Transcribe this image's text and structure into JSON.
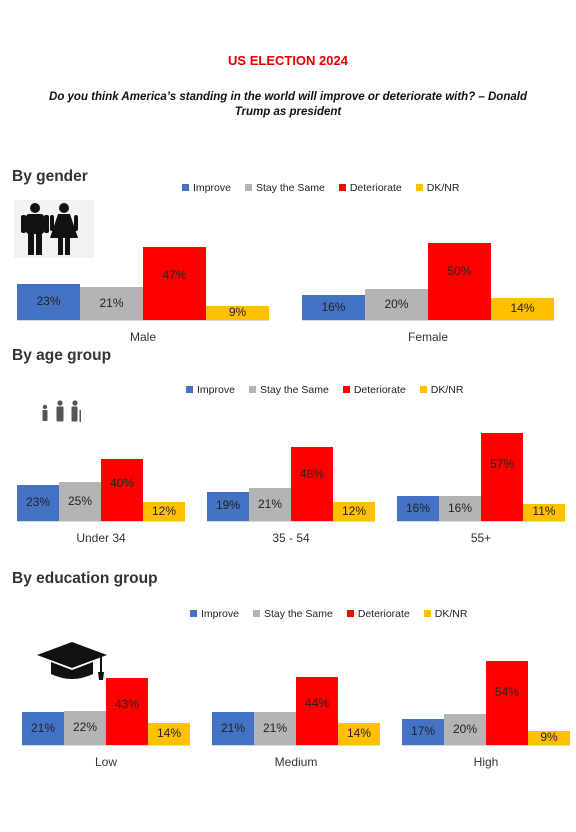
{
  "title": "US ELECTION 2024",
  "question": "Do you think America’s standing in the world will improve or deteriorate with? – Donald Trump as president",
  "colors": {
    "improve": "#4472c4",
    "same": "#b4b4b4",
    "deteriorate": "#ff0000",
    "dknr": "#ffc000"
  },
  "legend": [
    "Improve",
    "Stay the Same",
    "Deteriorate",
    "DK/NR"
  ],
  "sections": {
    "gender": {
      "title": "By gender",
      "icon": "man-woman-icon"
    },
    "age": {
      "title": "By age group",
      "icon": "family-age-icon"
    },
    "education": {
      "title": "By education group",
      "icon": "graduation-cap-icon"
    }
  },
  "chart_data": [
    {
      "type": "bar",
      "title": "By gender",
      "categories": [
        "Male",
        "Female"
      ],
      "series": [
        {
          "name": "Improve",
          "values": [
            23,
            16
          ]
        },
        {
          "name": "Stay the Same",
          "values": [
            21,
            20
          ]
        },
        {
          "name": "Deteriorate",
          "values": [
            47,
            50
          ]
        },
        {
          "name": "DK/NR",
          "values": [
            9,
            14
          ]
        }
      ],
      "value_labels": [
        [
          "23%",
          "21%",
          "47%",
          "9%"
        ],
        [
          "16%",
          "20%",
          "50%",
          "14%"
        ]
      ],
      "legend_position": "top"
    },
    {
      "type": "bar",
      "title": "By age group",
      "categories": [
        "Under 34",
        "35 - 54",
        "55+"
      ],
      "series": [
        {
          "name": "Improve",
          "values": [
            23,
            19,
            16
          ]
        },
        {
          "name": "Stay the Same",
          "values": [
            25,
            21,
            16
          ]
        },
        {
          "name": "Deteriorate",
          "values": [
            40,
            48,
            57
          ]
        },
        {
          "name": "DK/NR",
          "values": [
            12,
            12,
            11
          ]
        }
      ],
      "value_labels": [
        [
          "23%",
          "25%",
          "40%",
          "12%"
        ],
        [
          "19%",
          "21%",
          "48%",
          "12%"
        ],
        [
          "16%",
          "16%",
          "57%",
          "11%"
        ]
      ],
      "legend_position": "top"
    },
    {
      "type": "bar",
      "title": "By education group",
      "categories": [
        "Low",
        "Medium",
        "High"
      ],
      "series": [
        {
          "name": "Improve",
          "values": [
            21,
            21,
            17
          ]
        },
        {
          "name": "Stay the Same",
          "values": [
            22,
            21,
            20
          ]
        },
        {
          "name": "Deteriorate",
          "values": [
            43,
            44,
            54
          ]
        },
        {
          "name": "DK/NR",
          "values": [
            14,
            14,
            9
          ]
        }
      ],
      "value_labels": [
        [
          "21%",
          "22%",
          "43%",
          "14%"
        ],
        [
          "21%",
          "21%",
          "44%",
          "14%"
        ],
        [
          "17%",
          "20%",
          "54%",
          "9%"
        ]
      ],
      "legend_position": "top"
    }
  ]
}
